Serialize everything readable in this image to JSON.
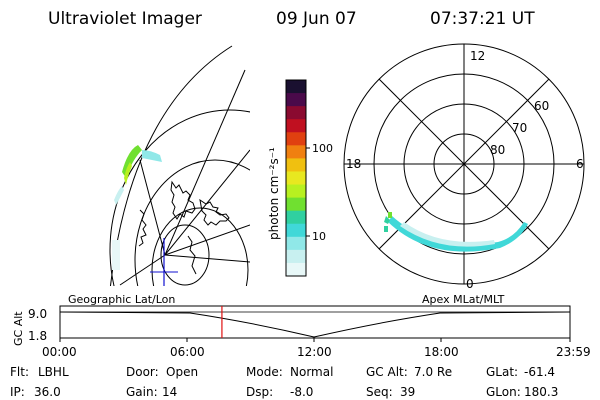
{
  "header": {
    "instrument": "Ultraviolet Imager",
    "date": "09 Jun 07",
    "time": "07:37:21 UT"
  },
  "colorbar": {
    "unit_label": "photon cm⁻²s⁻¹",
    "ticks": [
      "100",
      "10"
    ],
    "colors": [
      "#1a1030",
      "#4a0a4a",
      "#8a0a30",
      "#c01020",
      "#e04010",
      "#f08010",
      "#f0c010",
      "#e8e820",
      "#b8f020",
      "#70e030",
      "#30d0a0",
      "#40d8d8",
      "#90e8e8",
      "#c8f0f0",
      "#e8f8f8"
    ]
  },
  "polar_plot": {
    "clock_labels": [
      "12",
      "6",
      "18",
      "0"
    ],
    "lat_labels": [
      "60",
      "70",
      "80"
    ],
    "aurora_color": "#40d8d8"
  },
  "timeline": {
    "left_title": "Geographic Lat/Lon",
    "right_title": "Apex MLat/MLT",
    "y_axis_label": "GC Alt",
    "y_ticks": [
      "9.0",
      "1.8"
    ],
    "x_ticks": [
      "00:00",
      "06:00",
      "12:00",
      "18:00",
      "23:59"
    ],
    "marker_color": "#e01010",
    "marker_time_hours": 7.62
  },
  "status": {
    "row1": [
      {
        "label": "Flt:",
        "value": "LBHL"
      },
      {
        "label": "Door:",
        "value": "Open"
      },
      {
        "label": "Mode:",
        "value": "Normal"
      },
      {
        "label": "GC Alt:",
        "value": "7.0 Re"
      },
      {
        "label": "GLat:",
        "value": "-61.4"
      }
    ],
    "row2": [
      {
        "label": "IP:",
        "value": "36.0"
      },
      {
        "label": "Gain:",
        "value": "14"
      },
      {
        "label": "Dsp:",
        "value": "-8.0"
      },
      {
        "label": "Seq:",
        "value": "39"
      },
      {
        "label": "GLon:",
        "value": "180.3"
      }
    ]
  }
}
